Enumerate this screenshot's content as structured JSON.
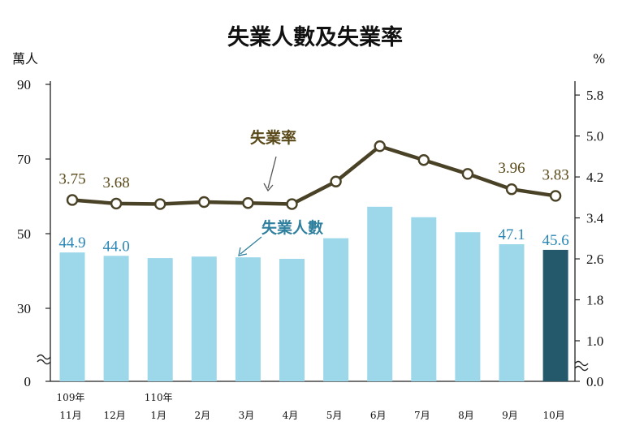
{
  "chart_data": {
    "type": "bar+line",
    "title": "失業人數及失業率",
    "left_unit": "萬人",
    "right_unit": "%",
    "categories": [
      "109年 11月",
      "12月",
      "110年 1月",
      "2月",
      "3月",
      "4月",
      "5月",
      "6月",
      "7月",
      "8月",
      "9月",
      "10月"
    ],
    "category_lines": [
      [
        "109年",
        "11月"
      ],
      [
        "",
        "12月"
      ],
      [
        "110年",
        "1月"
      ],
      [
        "",
        "2月"
      ],
      [
        "",
        "3月"
      ],
      [
        "",
        "4月"
      ],
      [
        "",
        "5月"
      ],
      [
        "",
        "6月"
      ],
      [
        "",
        "7月"
      ],
      [
        "",
        "8月"
      ],
      [
        "",
        "9月"
      ],
      [
        "",
        "10月"
      ]
    ],
    "left_axis": {
      "ticks": [
        "0",
        "30",
        "50",
        "70",
        "90"
      ],
      "break": true
    },
    "right_axis": {
      "ticks": [
        "0.0",
        "1.0",
        "1.8",
        "2.6",
        "3.4",
        "4.2",
        "5.0",
        "5.8"
      ],
      "break": true
    },
    "series": [
      {
        "name": "失業人數",
        "type": "bar",
        "values": [
          44.9,
          44.0,
          43.4,
          43.8,
          43.6,
          43.2,
          48.7,
          57.1,
          54.3,
          50.3,
          47.1,
          45.6
        ],
        "labels": [
          "44.9",
          "44.0",
          "",
          "",
          "",
          "",
          "",
          "",
          "",
          "",
          "47.1",
          "45.6"
        ],
        "color": "#9dd7ea",
        "highlight_color": "#23596b"
      },
      {
        "name": "失業率",
        "type": "line",
        "values": [
          3.75,
          3.68,
          3.67,
          3.71,
          3.69,
          3.67,
          4.11,
          4.8,
          4.53,
          4.26,
          3.96,
          3.83
        ],
        "labels": [
          "3.75",
          "3.68",
          "",
          "",
          "",
          "",
          "",
          "",
          "",
          "",
          "3.96",
          "3.83"
        ],
        "color": "#4a4226"
      }
    ],
    "annotations": [
      {
        "text": "失業率",
        "series": "line",
        "color": "#5a4a1a"
      },
      {
        "text": "失業人數",
        "series": "bar",
        "color": "#2f7f9e"
      }
    ]
  }
}
